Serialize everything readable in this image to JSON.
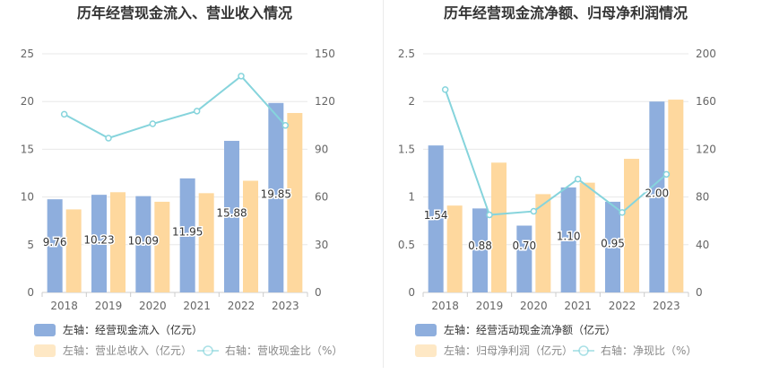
{
  "colors": {
    "bar1": "#8eaedd",
    "bar2": "#fed89e",
    "line": "#86d4dc",
    "grid": "#e8e8e8",
    "axis_text": "#666666",
    "title": "#333333",
    "legend_text": "#333333",
    "legend_text_muted": "#888888"
  },
  "chart_data": [
    {
      "type": "bar",
      "title": "历年经营现金流入、营业收入情况",
      "categories": [
        "2018",
        "2019",
        "2020",
        "2021",
        "2022",
        "2023"
      ],
      "left_axis": {
        "ylim": [
          0,
          25
        ],
        "ticks": [
          "0",
          "5",
          "10",
          "15",
          "20",
          "25"
        ]
      },
      "right_axis": {
        "ylim": [
          0,
          150
        ],
        "ticks": [
          "0",
          "30",
          "60",
          "90",
          "120",
          "150"
        ]
      },
      "series": [
        {
          "name": "左轴：经营现金流入（亿元）",
          "kind": "bar",
          "axis": "left",
          "values": [
            9.76,
            10.23,
            10.09,
            11.95,
            15.88,
            19.85
          ],
          "labels": [
            "9.76",
            "10.23",
            "10.09",
            "11.95",
            "15.88",
            "19.85"
          ]
        },
        {
          "name": "左轴：营业总收入（亿元）",
          "kind": "bar",
          "axis": "left",
          "values": [
            8.7,
            10.5,
            9.5,
            10.4,
            11.7,
            18.8
          ]
        },
        {
          "name": "右轴：营收现金比（%）",
          "kind": "line",
          "axis": "right",
          "values": [
            112,
            97,
            106,
            114,
            136,
            105
          ]
        }
      ]
    },
    {
      "type": "bar",
      "title": "历年经营现金流净额、归母净利润情况",
      "categories": [
        "2018",
        "2019",
        "2020",
        "2021",
        "2022",
        "2023"
      ],
      "left_axis": {
        "ylim": [
          0,
          2.5
        ],
        "ticks": [
          "0",
          "0.5",
          "1",
          "1.5",
          "2",
          "2.5"
        ]
      },
      "right_axis": {
        "ylim": [
          0,
          200
        ],
        "ticks": [
          "0",
          "40",
          "80",
          "120",
          "160",
          "200"
        ]
      },
      "series": [
        {
          "name": "左轴：经营活动现金流净额（亿元）",
          "kind": "bar",
          "axis": "left",
          "values": [
            1.54,
            0.88,
            0.7,
            1.1,
            0.95,
            2.0
          ],
          "labels": [
            "1.54",
            "0.88",
            "0.70",
            "1.10",
            "0.95",
            "2.00"
          ]
        },
        {
          "name": "左轴：归母净利润（亿元）",
          "kind": "bar",
          "axis": "left",
          "values": [
            0.91,
            1.36,
            1.03,
            1.15,
            1.4,
            2.02
          ]
        },
        {
          "name": "右轴：净现比（%）",
          "kind": "line",
          "axis": "right",
          "values": [
            170,
            65,
            68,
            95,
            67,
            99
          ]
        }
      ]
    }
  ]
}
